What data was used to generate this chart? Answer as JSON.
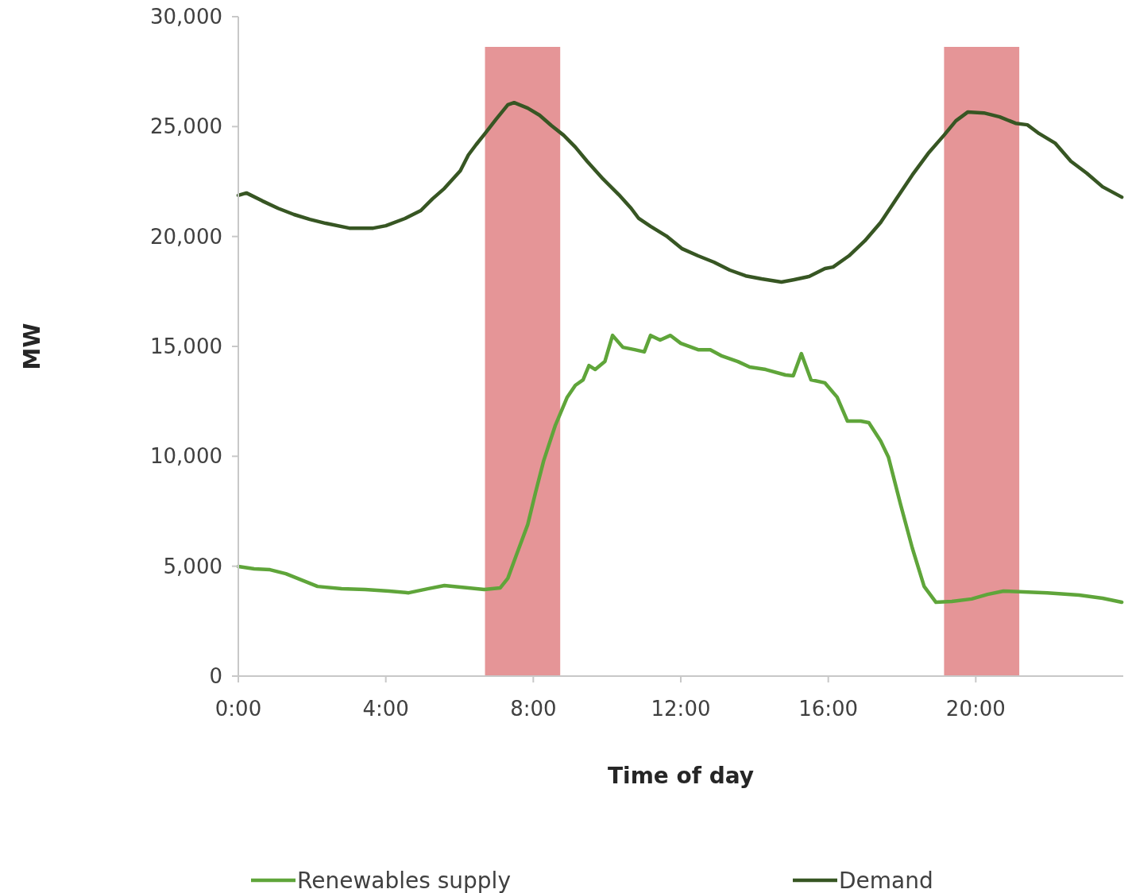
{
  "chart_data": {
    "type": "line",
    "xlabel": "Time of day",
    "ylabel": "MW",
    "xlim": [
      0,
      24
    ],
    "ylim": [
      0,
      30000
    ],
    "xticks": [
      {
        "value": 0,
        "label": "0:00"
      },
      {
        "value": 4,
        "label": "4:00"
      },
      {
        "value": 8,
        "label": "8:00"
      },
      {
        "value": 12,
        "label": "12:00"
      },
      {
        "value": 16,
        "label": "16:00"
      },
      {
        "value": 20,
        "label": "20:00"
      }
    ],
    "yticks": [
      {
        "value": 0,
        "label": "0"
      },
      {
        "value": 5000,
        "label": "5,000"
      },
      {
        "value": 10000,
        "label": "10,000"
      },
      {
        "value": 15000,
        "label": "15,000"
      },
      {
        "value": 20000,
        "label": "20,000"
      },
      {
        "value": 25000,
        "label": "25,000"
      },
      {
        "value": 30000,
        "label": "30,000"
      }
    ],
    "grid": false,
    "legend": "bottom",
    "line_style": "solid",
    "marker": "none",
    "bands": [
      {
        "axis": "x",
        "from": 6.69,
        "to": 8.73,
        "color": "#e59597"
      },
      {
        "axis": "x",
        "from": 19.14,
        "to": 21.18,
        "color": "#e59597"
      }
    ],
    "series": [
      {
        "name": "Renewables supply",
        "color": "#5fa53a",
        "x": [
          0,
          0.43,
          0.86,
          1.29,
          1.72,
          2.15,
          2.8,
          3.44,
          4.09,
          4.62,
          5.16,
          5.59,
          6.24,
          6.67,
          7.1,
          7.31,
          7.53,
          7.85,
          8.06,
          8.28,
          8.6,
          8.92,
          9.14,
          9.35,
          9.51,
          9.68,
          9.94,
          10.15,
          10.43,
          10.75,
          11.01,
          11.18,
          11.44,
          11.72,
          12,
          12.47,
          12.8,
          13.12,
          13.55,
          13.87,
          14.3,
          14.84,
          15.05,
          15.27,
          15.53,
          15.91,
          16.24,
          16.52,
          16.88,
          17.1,
          17.42,
          17.63,
          17.96,
          18.28,
          18.6,
          18.92,
          19.35,
          19.89,
          20.32,
          20.75,
          21.29,
          21.94,
          22.8,
          23.44,
          23.96
        ],
        "values": [
          4990,
          4880,
          4840,
          4660,
          4370,
          4080,
          3980,
          3940,
          3870,
          3790,
          3980,
          4120,
          4010,
          3940,
          4010,
          4450,
          5460,
          6900,
          8350,
          9790,
          11420,
          12690,
          13230,
          13480,
          14130,
          13950,
          14310,
          15500,
          14960,
          14850,
          14750,
          15500,
          15290,
          15500,
          15140,
          14850,
          14850,
          14560,
          14310,
          14060,
          13950,
          13700,
          13660,
          14670,
          13480,
          13340,
          12690,
          11600,
          11600,
          11530,
          10700,
          9970,
          7810,
          5820,
          4080,
          3360,
          3400,
          3510,
          3720,
          3870,
          3830,
          3790,
          3690,
          3540,
          3360
        ]
      },
      {
        "name": "Demand",
        "color": "#375623",
        "x": [
          0,
          0.22,
          0.65,
          1.08,
          1.51,
          1.94,
          2.37,
          3.01,
          3.66,
          4,
          4.52,
          4.95,
          5.27,
          5.59,
          6.02,
          6.24,
          6.45,
          6.69,
          6.99,
          7.31,
          7.48,
          7.85,
          8.17,
          8.49,
          8.82,
          9.14,
          9.46,
          9.89,
          10.32,
          10.65,
          10.86,
          11.18,
          11.61,
          12.04,
          12.47,
          12.9,
          13.33,
          13.76,
          14.19,
          14.73,
          15.05,
          15.48,
          15.91,
          16.13,
          16.56,
          16.99,
          17.42,
          17.85,
          18.28,
          18.71,
          19.14,
          19.46,
          19.78,
          20.22,
          20.65,
          21.08,
          21.4,
          21.72,
          22.15,
          22.58,
          23.01,
          23.44,
          23.96
        ],
        "values": [
          21870,
          21980,
          21620,
          21280,
          21000,
          20780,
          20600,
          20380,
          20380,
          20490,
          20820,
          21180,
          21720,
          22190,
          22990,
          23710,
          24180,
          24680,
          25330,
          25990,
          26090,
          25840,
          25520,
          25050,
          24610,
          24070,
          23420,
          22620,
          21900,
          21290,
          20820,
          20460,
          20020,
          19440,
          19120,
          18830,
          18470,
          18210,
          18070,
          17930,
          18030,
          18180,
          18540,
          18610,
          19120,
          19800,
          20640,
          21720,
          22800,
          23780,
          24610,
          25260,
          25660,
          25620,
          25440,
          25150,
          25080,
          24680,
          24250,
          23420,
          22880,
          22260,
          21790
        ]
      }
    ]
  }
}
